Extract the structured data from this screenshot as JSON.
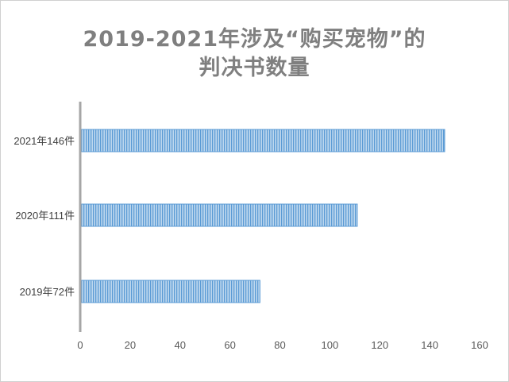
{
  "chart_data": {
    "type": "bar",
    "orientation": "horizontal",
    "title_line1": "2019-2021年涉及“购买宠物”的",
    "title_line2": "判决书数量",
    "categories": [
      "2021年146件",
      "2020年111件",
      "2019年72件"
    ],
    "values": [
      146,
      111,
      72
    ],
    "xlim": [
      0,
      160
    ],
    "xticks": [
      "0",
      "20",
      "40",
      "60",
      "80",
      "100",
      "120",
      "140",
      "160"
    ],
    "grid": false,
    "legend": "none",
    "colors": {
      "bar": "#9dc3e6",
      "bar_stripe": "#5b9bd5",
      "axis": "#a6a6a6",
      "title": "#7f7f7f"
    }
  }
}
